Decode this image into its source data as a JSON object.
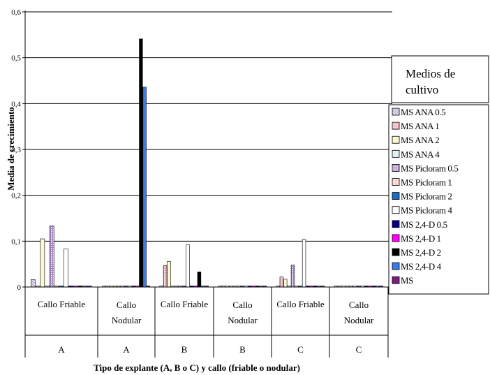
{
  "chart_data": {
    "type": "bar",
    "xlabel": "Tipo de explante (A, B o C) y callo (friable o nodular)",
    "ylabel": "Media de crecimiento",
    "ylim": [
      0,
      0.6
    ],
    "yticks": [
      "0",
      "0,1",
      "0,2",
      "0,3",
      "0,4",
      "0,5",
      "0,6"
    ],
    "grid": true,
    "legend_position": "right",
    "legend_title": [
      "Medios de",
      "cultivo"
    ],
    "categories": [
      {
        "callo": [
          "Callo Friable"
        ],
        "explante": "A"
      },
      {
        "callo": [
          "Callo",
          "Nodular"
        ],
        "explante": "A"
      },
      {
        "callo": [
          "Callo Friable"
        ],
        "explante": "B"
      },
      {
        "callo": [
          "Callo",
          "Nodular"
        ],
        "explante": "B"
      },
      {
        "callo": [
          "Callo Friable"
        ],
        "explante": "C"
      },
      {
        "callo": [
          "Callo",
          "Nodular"
        ],
        "explante": "C"
      }
    ],
    "series": [
      {
        "name": "MS ANA 0.5",
        "color": "#e8e4f2",
        "values": [
          0.016,
          0,
          0,
          0,
          0,
          0
        ]
      },
      {
        "name": "MS ANA 1",
        "color": "#f3cfd6",
        "values": [
          0,
          0,
          0.047,
          0,
          0.022,
          0
        ]
      },
      {
        "name": "MS ANA 2",
        "color": "#fbf8d2",
        "values": [
          0.105,
          0,
          0.056,
          0,
          0.017,
          0
        ]
      },
      {
        "name": "MS ANA 4",
        "color": "#e2f2f4",
        "values": [
          0,
          0,
          0,
          0,
          0,
          0
        ]
      },
      {
        "name": "MS Picloram 0.5",
        "color": "#d9c6e6",
        "values": [
          0.133,
          0,
          0,
          0,
          0.048,
          0
        ]
      },
      {
        "name": "MS Picloram 1",
        "color": "#f8d8d0",
        "values": [
          0,
          0,
          0,
          0,
          0,
          0
        ]
      },
      {
        "name": "MS Picloram 2",
        "color": "#1b6dc2",
        "values": [
          0,
          0,
          0,
          0,
          0,
          0
        ]
      },
      {
        "name": "MS Picloram 4",
        "color": "#ffffff",
        "values": [
          0.083,
          0,
          0.092,
          0,
          0.104,
          0
        ]
      },
      {
        "name": "MS 2,4-D 0.5",
        "color": "#000080",
        "values": [
          0,
          0,
          0,
          0,
          0,
          0
        ]
      },
      {
        "name": "MS 2,4-D 1",
        "color": "#ff00ff",
        "values": [
          0,
          0,
          0,
          0,
          0,
          0
        ]
      },
      {
        "name": "MS 2,4-D 2",
        "color": "#000000",
        "values": [
          0,
          0.541,
          0.033,
          0,
          0,
          0
        ]
      },
      {
        "name": "MS 2,4-D 4",
        "color": "#3b7be8",
        "values": [
          0,
          0.436,
          0,
          0,
          0,
          0
        ]
      },
      {
        "name": "MS",
        "color": "#7a1f7e",
        "values": [
          0,
          0,
          0,
          0,
          0,
          0
        ]
      }
    ]
  }
}
